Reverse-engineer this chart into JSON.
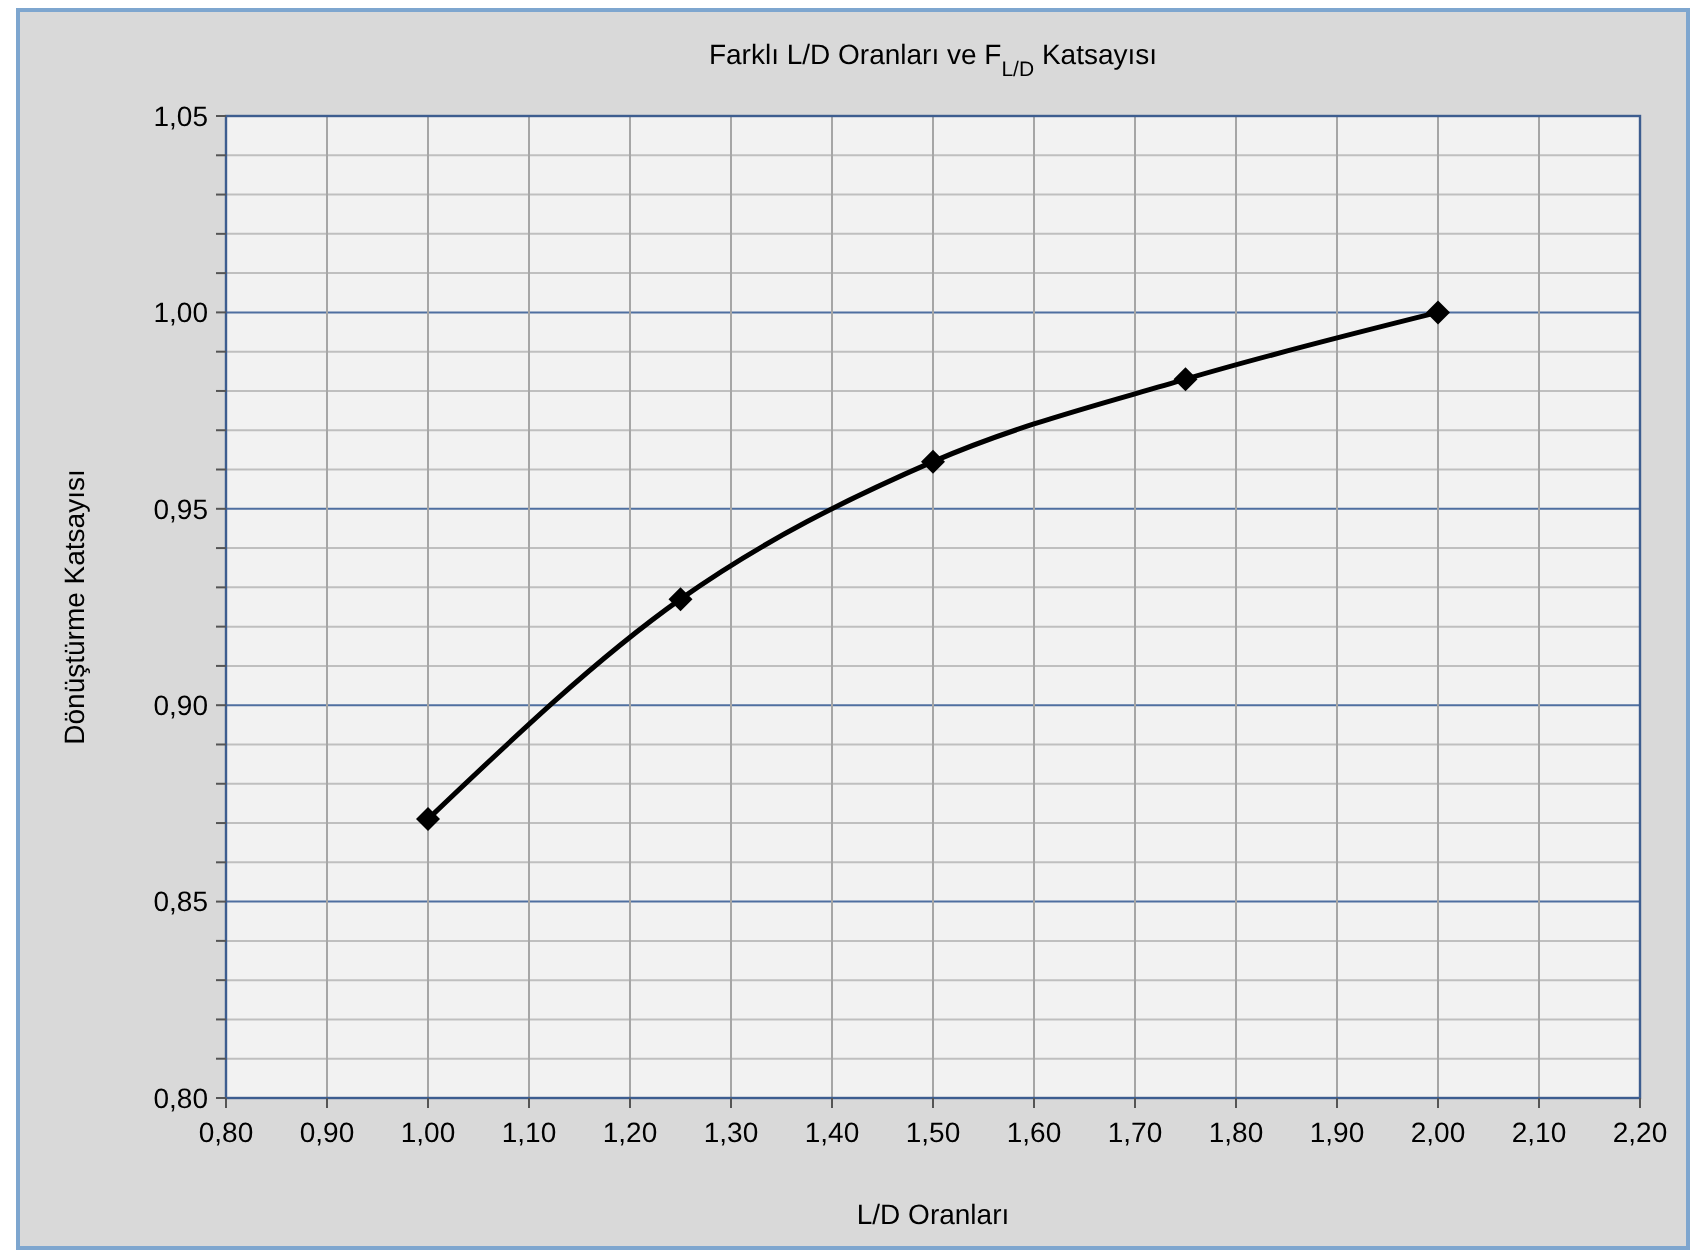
{
  "chart_data": {
    "type": "line",
    "title": "Farklı L/D Oranları ve F$_{L/D}$ Katsayısı",
    "xlabel": "L/D Oranları",
    "ylabel": "Dönüştürme Katsayısı",
    "x": [
      1.0,
      1.25,
      1.5,
      1.75,
      2.0
    ],
    "series": [
      {
        "color": "#000000",
        "values": [
          0.871,
          0.927,
          0.962,
          0.983,
          1.0
        ]
      }
    ],
    "marker": "diamond",
    "line_style": "solid",
    "grid": true,
    "xlim": [
      0.8,
      2.2
    ],
    "xticks": [
      {
        "value": 0.8,
        "label": "0,80"
      },
      {
        "value": 0.9,
        "label": "0,90"
      },
      {
        "value": 1.0,
        "label": "1,00"
      },
      {
        "value": 1.1,
        "label": "1,10"
      },
      {
        "value": 1.2,
        "label": "1,20"
      },
      {
        "value": 1.3,
        "label": "1,30"
      },
      {
        "value": 1.4,
        "label": "1,40"
      },
      {
        "value": 1.5,
        "label": "1,50"
      },
      {
        "value": 1.6,
        "label": "1,60"
      },
      {
        "value": 1.7,
        "label": "1,70"
      },
      {
        "value": 1.8,
        "label": "1,80"
      },
      {
        "value": 1.9,
        "label": "1,90"
      },
      {
        "value": 2.0,
        "label": "2,00"
      },
      {
        "value": 2.1,
        "label": "2,10"
      },
      {
        "value": 2.2,
        "label": "2,20"
      }
    ],
    "ylim": [
      0.8,
      1.05
    ],
    "yticks": [
      {
        "value": 0.8,
        "label": "0,80"
      },
      {
        "value": 0.81,
        "label": null
      },
      {
        "value": 0.82,
        "label": null
      },
      {
        "value": 0.83,
        "label": null
      },
      {
        "value": 0.84,
        "label": null
      },
      {
        "value": 0.85,
        "label": "0,85"
      },
      {
        "value": 0.86,
        "label": null
      },
      {
        "value": 0.87,
        "label": null
      },
      {
        "value": 0.88,
        "label": null
      },
      {
        "value": 0.89,
        "label": null
      },
      {
        "value": 0.9,
        "label": "0,90"
      },
      {
        "value": 0.91,
        "label": null
      },
      {
        "value": 0.92,
        "label": null
      },
      {
        "value": 0.93,
        "label": null
      },
      {
        "value": 0.94,
        "label": null
      },
      {
        "value": 0.95,
        "label": "0,95"
      },
      {
        "value": 0.96,
        "label": null
      },
      {
        "value": 0.97,
        "label": null
      },
      {
        "value": 0.98,
        "label": null
      },
      {
        "value": 0.99,
        "label": null
      },
      {
        "value": 1.0,
        "label": "1,00"
      },
      {
        "value": 1.01,
        "label": null
      },
      {
        "value": 1.02,
        "label": null
      },
      {
        "value": 1.03,
        "label": null
      },
      {
        "value": 1.04,
        "label": null
      },
      {
        "value": 1.05,
        "label": "1,05"
      }
    ]
  }
}
